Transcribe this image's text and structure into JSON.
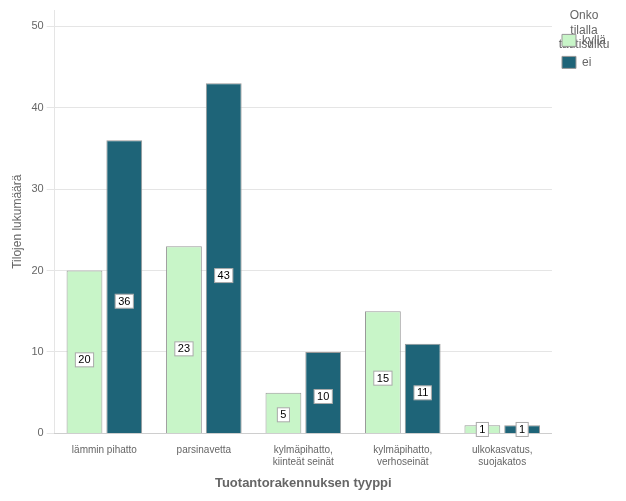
{
  "chart_data": {
    "type": "bar",
    "categories": [
      "lämmin pihatto",
      "parsinavetta",
      "kylmäpihatto,\nkiinteät seinät",
      "kylmäpihatto,\nverhoseinät",
      "ulkokasvatus,\nsuojakatos"
    ],
    "series": [
      {
        "name": "kyllä",
        "color": "#c8f5c8",
        "values": [
          20,
          23,
          5,
          15,
          1
        ]
      },
      {
        "name": "ei",
        "color": "#1e6478",
        "values": [
          36,
          43,
          10,
          11,
          1
        ]
      }
    ],
    "xlabel": "Tuotantorakennuksen tyyppi",
    "ylabel": "Tilojen lukumäärä",
    "ylim": [
      0,
      52
    ],
    "yticks": [
      0,
      10,
      20,
      30,
      40,
      50
    ],
    "legend_title": "Onko\ntilalla\ntautisulku",
    "legend": "right",
    "grid": true,
    "data_labels": true
  }
}
